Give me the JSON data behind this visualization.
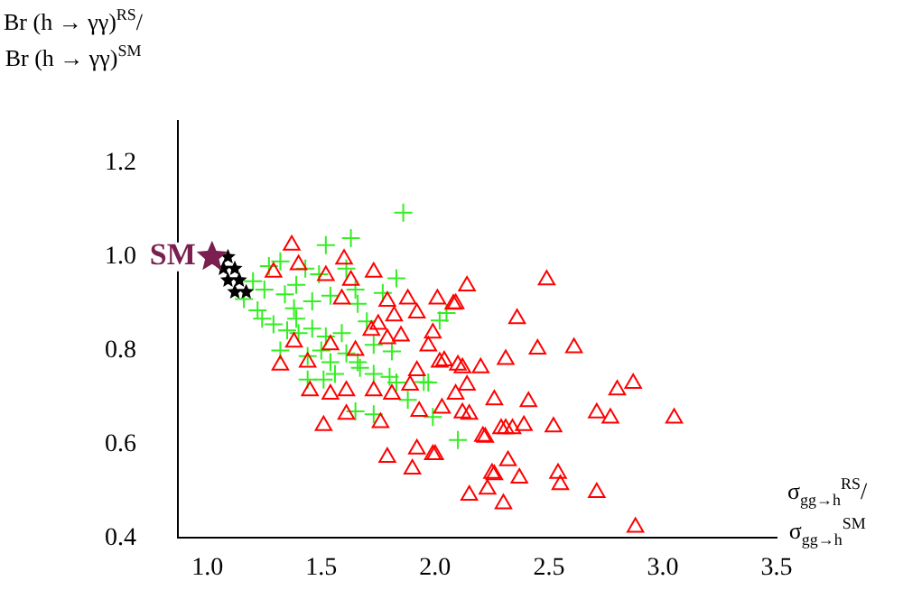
{
  "chart_data": {
    "type": "scatter",
    "xlabel": "σ$_{gg→h}$$^{RS}$/σ$_{gg→h}$$^{SM}$",
    "ylabel": "Br (h → γγ)$^{RS}$/Br (h → γγ)$^{SM}$",
    "xlim": [
      0.87,
      3.5
    ],
    "ylim": [
      0.4,
      1.29
    ],
    "xticks": [
      {
        "value": 1,
        "label": "1.0"
      },
      1.5,
      {
        "value": 2,
        "label": "2.0"
      },
      2.5,
      {
        "value": 3,
        "label": "3.0"
      },
      3.5
    ],
    "yticks": [
      0.4,
      0.6,
      0.8,
      {
        "value": 1,
        "label": "1.0"
      },
      1.2
    ],
    "grid": false,
    "legend": false,
    "series": [
      {
        "color": "#ff0000",
        "marker": "triangle",
        "x": [
          1.37,
          1.6,
          1.73,
          2.14,
          1.29,
          1.4,
          1.52,
          1.63,
          1.59,
          1.79,
          1.88,
          2.01,
          2.09,
          2.36,
          1.92,
          1.82,
          1.75,
          1.85,
          1.99,
          1.97,
          2.04,
          1.32,
          1.44,
          1.38,
          1.54,
          1.65,
          1.72,
          1.79,
          1.92,
          2.12,
          2.2,
          2.31,
          1.45,
          1.54,
          1.61,
          1.73,
          1.81,
          1.89,
          2.09,
          2.26,
          1.51,
          1.61,
          1.76,
          1.93,
          2.03,
          2.15,
          2.22,
          2.31,
          1.79,
          1.92,
          2.0,
          2.15,
          2.23,
          2.3,
          2.37,
          1.9,
          2.32,
          2.26,
          2.49,
          2.45,
          2.61,
          2.41,
          2.8,
          2.87,
          2.71,
          2.77,
          3.05,
          2.52,
          2.39,
          2.34,
          2.29,
          2.21,
          2.25,
          2.54,
          2.55,
          2.71,
          2.88,
          2.12,
          2.14,
          2.1,
          2.02,
          1.99,
          2.08
        ],
        "values": [
          1.025,
          0.995,
          0.967,
          0.938,
          0.967,
          0.983,
          0.96,
          0.95,
          0.91,
          0.905,
          0.91,
          0.91,
          0.9,
          0.868,
          0.88,
          0.874,
          0.856,
          0.831,
          0.837,
          0.81,
          0.778,
          0.769,
          0.775,
          0.818,
          0.812,
          0.8,
          0.843,
          0.825,
          0.757,
          0.763,
          0.763,
          0.781,
          0.714,
          0.707,
          0.714,
          0.714,
          0.707,
          0.726,
          0.707,
          0.695,
          0.64,
          0.664,
          0.646,
          0.67,
          0.677,
          0.664,
          0.615,
          0.633,
          0.572,
          0.59,
          0.578,
          0.491,
          0.504,
          0.473,
          0.528,
          0.547,
          0.565,
          0.535,
          0.951,
          0.803,
          0.806,
          0.691,
          0.716,
          0.73,
          0.667,
          0.656,
          0.656,
          0.637,
          0.64,
          0.633,
          0.633,
          0.617,
          0.538,
          0.538,
          0.514,
          0.497,
          0.423,
          0.667,
          0.726,
          0.769,
          0.775,
          0.578,
          0.899
        ]
      },
      {
        "color": "#33ee22",
        "marker": "cross",
        "x": [
          1.86,
          1.63,
          1.52,
          1.32,
          1.27,
          1.43,
          1.49,
          1.61,
          1.2,
          1.16,
          1.25,
          1.34,
          1.39,
          1.46,
          1.54,
          1.65,
          1.66,
          1.83,
          1.77,
          1.22,
          1.24,
          1.29,
          1.35,
          1.4,
          1.46,
          1.39,
          1.32,
          1.44,
          1.5,
          1.54,
          1.61,
          1.66,
          1.73,
          1.81,
          1.44,
          1.51,
          1.56,
          1.67,
          1.73,
          1.8,
          1.83,
          1.88,
          1.97,
          1.99,
          1.73,
          1.65,
          2.1,
          2.05,
          1.52,
          1.59,
          1.7,
          1.38,
          2.02,
          1.95
        ],
        "values": [
          1.094,
          1.04,
          1.025,
          0.99,
          0.98,
          0.975,
          0.963,
          0.975,
          0.948,
          0.91,
          0.93,
          0.92,
          0.94,
          0.905,
          0.917,
          0.93,
          0.9,
          0.954,
          0.923,
          0.886,
          0.868,
          0.856,
          0.843,
          0.837,
          0.847,
          0.868,
          0.8,
          0.788,
          0.8,
          0.775,
          0.794,
          0.775,
          0.812,
          0.798,
          0.738,
          0.738,
          0.75,
          0.763,
          0.75,
          0.744,
          0.732,
          0.695,
          0.732,
          0.658,
          0.664,
          0.67,
          0.609,
          0.88,
          0.83,
          0.837,
          0.862,
          0.89,
          0.864,
          0.733
        ]
      },
      {
        "color": "#000000",
        "marker": "star",
        "x": [
          1.09,
          1.07,
          1.12,
          1.09,
          1.14,
          1.12,
          1.17
        ],
        "values": [
          1.0,
          0.975,
          0.975,
          0.95,
          0.95,
          0.925,
          0.925
        ]
      },
      {
        "name": "SM",
        "color": "#7a1f4f",
        "marker": "star",
        "x": [
          1.02
        ],
        "values": [
          1.0
        ]
      }
    ]
  }
}
